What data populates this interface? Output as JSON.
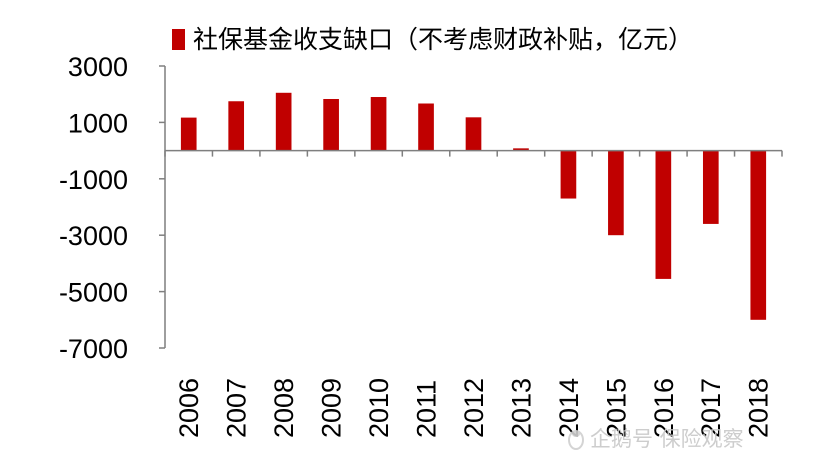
{
  "chart_data": {
    "type": "bar",
    "legend": "社保基金收支缺口（不考虑财政补贴，亿元）",
    "legend_position": "top",
    "categories": [
      "2006",
      "2007",
      "2008",
      "2009",
      "2010",
      "2011",
      "2012",
      "2013",
      "2014",
      "2015",
      "2016",
      "2017",
      "2018"
    ],
    "series": [
      {
        "name": "社保基金收支缺口（不考虑财政补贴，亿元）",
        "color": "#c00000",
        "values": [
          1170,
          1750,
          2050,
          1830,
          1900,
          1670,
          1180,
          80,
          -1700,
          -3000,
          -4550,
          -2600,
          -6000
        ]
      }
    ],
    "yticks": [
      "3000",
      "1000",
      "-1000",
      "-3000",
      "-5000",
      "-7000"
    ],
    "ylim": [
      -7000,
      3000
    ],
    "grid": false
  },
  "watermark": {
    "text": "企鹅号 保险观察",
    "icon": "penguin-logo-icon"
  }
}
